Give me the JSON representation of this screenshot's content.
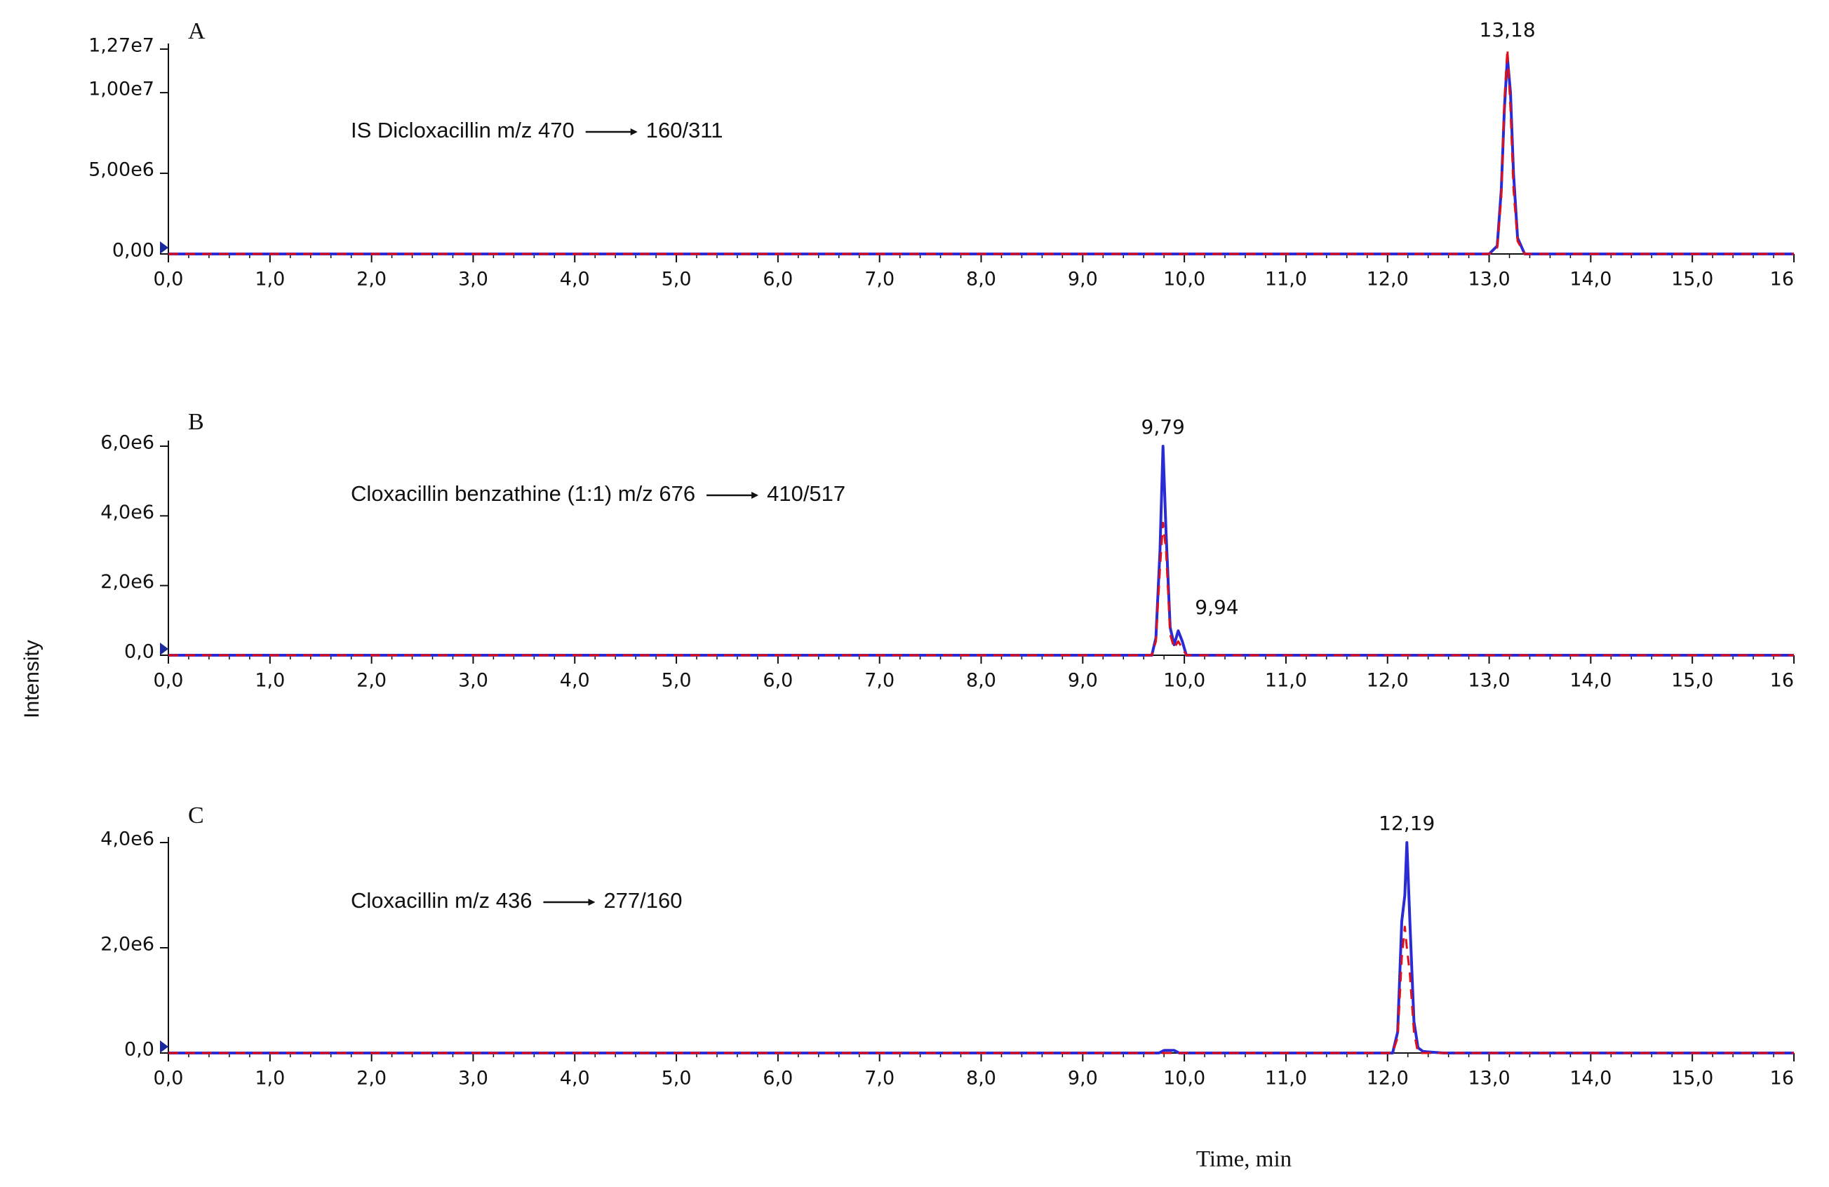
{
  "chart_data": [
    {
      "type": "line",
      "panel": "A",
      "annotation": [
        "IS Dicloxacillin   m/z 470",
        "160/311"
      ],
      "x": [
        0,
        13.0,
        13.08,
        13.12,
        13.15,
        13.18,
        13.21,
        13.24,
        13.28,
        13.35,
        16
      ],
      "series": [
        {
          "color": "#2b2bd6",
          "values": [
            0,
            0,
            500000,
            4000000,
            9000000,
            12200000,
            10000000,
            5000000,
            1000000,
            0,
            0
          ]
        },
        {
          "color": "#e0101a",
          "values": [
            0,
            0,
            400000,
            3500000,
            9500000,
            12700000,
            9000000,
            4000000,
            800000,
            0,
            0
          ]
        }
      ],
      "peaks": [
        {
          "x": 13.18,
          "y": 12700000,
          "label": "13,18"
        }
      ],
      "xlim": [
        0,
        16
      ],
      "xticks": [
        {
          "value": 0,
          "label": "0,0"
        },
        {
          "value": 1,
          "label": "1,0"
        },
        {
          "value": 2,
          "label": "2,0"
        },
        {
          "value": 3,
          "label": "3,0"
        },
        {
          "value": 4,
          "label": "4,0"
        },
        {
          "value": 5,
          "label": "5,0"
        },
        {
          "value": 6,
          "label": "6,0"
        },
        {
          "value": 7,
          "label": "7,0"
        },
        {
          "value": 8,
          "label": "8,0"
        },
        {
          "value": 9,
          "label": "9,0"
        },
        {
          "value": 10,
          "label": "10,0"
        },
        {
          "value": 11,
          "label": "11,0"
        },
        {
          "value": 12,
          "label": "12,0"
        },
        {
          "value": 13,
          "label": "13,0"
        },
        {
          "value": 14,
          "label": "14,0"
        },
        {
          "value": 15,
          "label": "15,0"
        },
        16
      ],
      "ylim": [
        0,
        12700000
      ],
      "yticks": [
        {
          "value": 0,
          "label": "0,00"
        },
        {
          "value": 5000000,
          "label": "5,00e6"
        },
        {
          "value": 10000000,
          "label": "1,00e7"
        },
        {
          "value": 12700000,
          "label": "1,27e7"
        }
      ]
    },
    {
      "type": "line",
      "panel": "B",
      "annotation": [
        "Cloxacillin benzathine (1:1)   m/z 676",
        "410/517"
      ],
      "ylabel": "Intensity",
      "x": [
        0,
        9.68,
        9.72,
        9.76,
        9.79,
        9.82,
        9.86,
        9.9,
        9.94,
        9.98,
        10.02,
        10.1,
        16
      ],
      "series": [
        {
          "color": "#2b2bd6",
          "values": [
            0,
            0,
            500000,
            3000000,
            6000000,
            3500000,
            800000,
            300000,
            700000,
            400000,
            0,
            0,
            0
          ]
        },
        {
          "color": "#e0101a",
          "values": [
            0,
            0,
            400000,
            2500000,
            3800000,
            3000000,
            600000,
            200000,
            400000,
            200000,
            0,
            0,
            0
          ]
        }
      ],
      "peaks": [
        {
          "x": 9.79,
          "y": 6000000,
          "label": "9,79"
        },
        {
          "x": 9.94,
          "y": 700000,
          "label": "9,94"
        }
      ],
      "xlim": [
        0,
        16
      ],
      "xticks": [
        {
          "value": 0,
          "label": "0,0"
        },
        {
          "value": 1,
          "label": "1,0"
        },
        {
          "value": 2,
          "label": "2,0"
        },
        {
          "value": 3,
          "label": "3,0"
        },
        {
          "value": 4,
          "label": "4,0"
        },
        {
          "value": 5,
          "label": "5,0"
        },
        {
          "value": 6,
          "label": "6,0"
        },
        {
          "value": 7,
          "label": "7,0"
        },
        {
          "value": 8,
          "label": "8,0"
        },
        {
          "value": 9,
          "label": "9,0"
        },
        {
          "value": 10,
          "label": "10,0"
        },
        {
          "value": 11,
          "label": "11,0"
        },
        {
          "value": 12,
          "label": "12,0"
        },
        {
          "value": 13,
          "label": "13,0"
        },
        {
          "value": 14,
          "label": "14,0"
        },
        {
          "value": 15,
          "label": "15,0"
        },
        16
      ],
      "ylim": [
        0,
        6000000
      ],
      "yticks": [
        {
          "value": 0,
          "label": "0,0"
        },
        {
          "value": 2000000,
          "label": "2,0e6"
        },
        {
          "value": 4000000,
          "label": "4,0e6"
        },
        {
          "value": 6000000,
          "label": "6,0e6"
        }
      ]
    },
    {
      "type": "line",
      "panel": "C",
      "annotation": [
        "Cloxacillin  m/z 436",
        "277/160"
      ],
      "xlabel": "Time,  min",
      "x": [
        0,
        9.75,
        9.8,
        9.9,
        9.95,
        12.05,
        12.1,
        12.14,
        12.17,
        12.19,
        12.22,
        12.26,
        12.3,
        12.35,
        12.55,
        16
      ],
      "series": [
        {
          "color": "#2b2bd6",
          "values": [
            0,
            0,
            50000,
            50000,
            0,
            0,
            400000,
            2500000,
            3000000,
            4000000,
            2500000,
            600000,
            100000,
            30000,
            0,
            0
          ]
        },
        {
          "color": "#e0101a",
          "values": [
            0,
            0,
            0,
            0,
            0,
            0,
            300000,
            1800000,
            2400000,
            2000000,
            1500000,
            400000,
            0,
            0,
            0,
            0
          ]
        }
      ],
      "peaks": [
        {
          "x": 12.19,
          "y": 4000000,
          "label": "12,19"
        }
      ],
      "xlim": [
        0,
        16
      ],
      "xticks": [
        {
          "value": 0,
          "label": "0,0"
        },
        {
          "value": 1,
          "label": "1,0"
        },
        {
          "value": 2,
          "label": "2,0"
        },
        {
          "value": 3,
          "label": "3,0"
        },
        {
          "value": 4,
          "label": "4,0"
        },
        {
          "value": 5,
          "label": "5,0"
        },
        {
          "value": 6,
          "label": "6,0"
        },
        {
          "value": 7,
          "label": "7,0"
        },
        {
          "value": 8,
          "label": "8,0"
        },
        {
          "value": 9,
          "label": "9,0"
        },
        {
          "value": 10,
          "label": "10,0"
        },
        {
          "value": 11,
          "label": "11,0"
        },
        {
          "value": 12,
          "label": "12,0"
        },
        {
          "value": 13,
          "label": "13,0"
        },
        {
          "value": 14,
          "label": "14,0"
        },
        {
          "value": 15,
          "label": "15,0"
        },
        16
      ],
      "ylim": [
        0,
        4000000
      ],
      "yticks": [
        {
          "value": 0,
          "label": "0,0"
        },
        {
          "value": 2000000,
          "label": "2,0e6"
        },
        {
          "value": 4000000,
          "label": "4,0e6"
        }
      ]
    }
  ]
}
